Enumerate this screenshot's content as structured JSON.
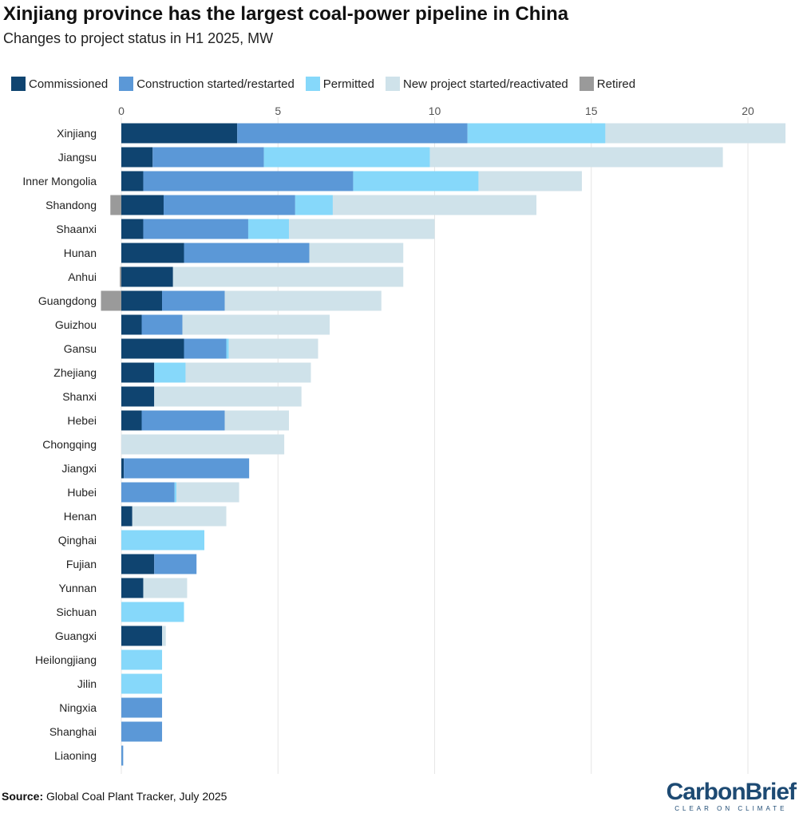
{
  "title": "Xinjiang province has the largest coal-power pipeline in China",
  "subtitle": "Changes to project status in H1 2025, MW",
  "source_label": "Source:",
  "source_text": "Global Coal Plant Tracker, July 2025",
  "logo": {
    "carbon": "Carbon",
    "brief": "Brief",
    "tagline": "CLEAR ON CLIMATE"
  },
  "colors": {
    "Commissioned": "#0f4470",
    "Construction started/restarted": "#5b98d7",
    "Permitted": "#86d8fa",
    "New project started/reactivated": "#cfe2ea",
    "Retired": "#9a9a9a"
  },
  "chart_data": {
    "type": "bar",
    "orientation": "horizontal",
    "stacked": true,
    "title": "Xinjiang province has the largest coal-power pipeline in China",
    "subtitle": "Changes to project status in H1 2025, MW",
    "xlim": [
      -0.7,
      21.3
    ],
    "xticks": [
      0,
      5,
      10,
      15,
      20
    ],
    "grid": "vertical",
    "legend_position": "top",
    "categories": [
      "Xinjiang",
      "Jiangsu",
      "Inner Mongolia",
      "Shandong",
      "Shaanxi",
      "Hunan",
      "Anhui",
      "Guangdong",
      "Guizhou",
      "Gansu",
      "Zhejiang",
      "Shanxi",
      "Hebei",
      "Chongqing",
      "Jiangxi",
      "Hubei",
      "Henan",
      "Qinghai",
      "Fujian",
      "Yunnan",
      "Sichuan",
      "Guangxi",
      "Heilongjiang",
      "Jilin",
      "Ningxia",
      "Shanghai",
      "Liaoning"
    ],
    "series": [
      {
        "name": "Commissioned",
        "values": [
          3.7,
          1.0,
          0.7,
          1.35,
          0.7,
          2.0,
          1.65,
          1.3,
          0.65,
          2.0,
          1.05,
          1.05,
          0.65,
          0,
          0.08,
          0,
          0.35,
          0,
          1.05,
          0.7,
          0,
          1.3,
          0,
          0,
          0,
          0,
          0
        ]
      },
      {
        "name": "Construction started/restarted",
        "values": [
          7.35,
          3.55,
          6.7,
          4.2,
          3.35,
          4.0,
          0,
          2.0,
          1.3,
          1.35,
          0,
          0,
          2.65,
          0,
          4.0,
          1.7,
          0,
          0,
          1.35,
          0,
          0,
          0,
          0,
          0,
          1.3,
          1.3,
          0.06
        ]
      },
      {
        "name": "Permitted",
        "values": [
          4.4,
          5.3,
          4.0,
          1.2,
          1.3,
          0,
          0,
          0,
          0,
          0.08,
          1.0,
          0,
          0,
          0,
          0,
          0.06,
          0,
          2.65,
          0,
          0,
          2.0,
          0,
          1.3,
          1.3,
          0,
          0,
          0
        ]
      },
      {
        "name": "New project started/reactivated",
        "values": [
          5.75,
          9.35,
          3.3,
          6.5,
          4.65,
          3.0,
          7.35,
          5.0,
          4.7,
          2.85,
          4.0,
          4.7,
          2.05,
          5.2,
          0,
          2.0,
          3.0,
          0,
          0,
          1.4,
          0,
          0.12,
          0,
          0,
          0,
          0,
          0
        ]
      },
      {
        "name": "Retired",
        "values": [
          0,
          0,
          0,
          -0.35,
          0,
          0,
          -0.05,
          -0.65,
          0,
          0,
          0,
          0,
          0,
          0,
          0,
          0,
          0,
          0,
          0,
          0,
          0,
          0,
          0,
          0,
          0,
          0,
          0
        ]
      }
    ]
  }
}
